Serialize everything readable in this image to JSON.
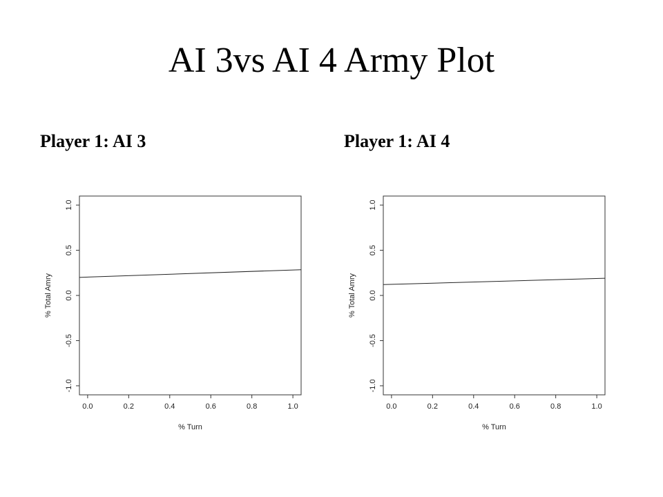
{
  "slide": {
    "title": "AI 3vs AI 4 Army Plot",
    "left_heading": "Player 1: AI 3",
    "right_heading": "Player 1: AI 4"
  },
  "chart_data": [
    {
      "type": "line",
      "title": "",
      "xlabel": "% Turn",
      "ylabel": "% Total Amry",
      "xlim": [
        -0.04,
        1.04
      ],
      "ylim": [
        -1.1,
        1.1
      ],
      "xticks": [
        "0.0",
        "0.2",
        "0.4",
        "0.6",
        "0.8",
        "1.0"
      ],
      "yticks": [
        "-1.0",
        "-0.5",
        "0.0",
        "0.5",
        "1.0"
      ],
      "grid": false,
      "series": [
        {
          "x": [
            -0.04,
            1.04
          ],
          "y": [
            0.2,
            0.285
          ]
        }
      ]
    },
    {
      "type": "line",
      "title": "",
      "xlabel": "% Turn",
      "ylabel": "% Total Amry",
      "xlim": [
        -0.04,
        1.04
      ],
      "ylim": [
        -1.1,
        1.1
      ],
      "xticks": [
        "0.0",
        "0.2",
        "0.4",
        "0.6",
        "0.8",
        "1.0"
      ],
      "yticks": [
        "-1.0",
        "-0.5",
        "0.0",
        "0.5",
        "1.0"
      ],
      "grid": false,
      "series": [
        {
          "x": [
            -0.04,
            1.04
          ],
          "y": [
            0.12,
            0.19
          ]
        }
      ]
    }
  ]
}
